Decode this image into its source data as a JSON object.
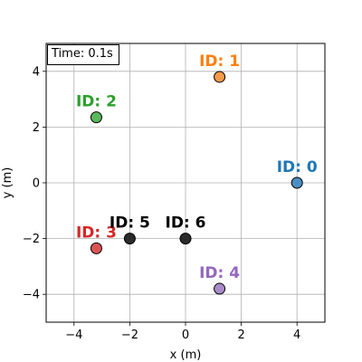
{
  "chart_data": {
    "type": "scatter",
    "title": "",
    "xlabel": "x (m)",
    "ylabel": "y (m)",
    "xlim": [
      -5,
      5
    ],
    "ylim": [
      -5,
      5
    ],
    "grid": true,
    "x_ticks": [
      -4,
      -2,
      0,
      2,
      4
    ],
    "y_ticks": [
      -4,
      -2,
      0,
      2,
      4
    ],
    "annotation": "Time: 0.1s",
    "points": [
      {
        "label": "ID: 0",
        "x": 4.0,
        "y": 0.0,
        "color": "#1f77b4",
        "fill": "#4a8fc4",
        "label_color": "#1f77b4"
      },
      {
        "label": "ID: 1",
        "x": 1.22,
        "y": 3.8,
        "color": "#ff7f0e",
        "fill": "#f59a4a",
        "label_color": "#ff7f0e"
      },
      {
        "label": "ID: 2",
        "x": -3.2,
        "y": 2.35,
        "color": "#2ca02c",
        "fill": "#5bb85b",
        "label_color": "#2ca02c"
      },
      {
        "label": "ID: 3",
        "x": -3.2,
        "y": -2.35,
        "color": "#d62728",
        "fill": "#dc5354",
        "label_color": "#d62728"
      },
      {
        "label": "ID: 4",
        "x": 1.22,
        "y": -3.8,
        "color": "#9467bd",
        "fill": "#a98aca",
        "label_color": "#9467bd"
      },
      {
        "label": "ID: 5",
        "x": -2.0,
        "y": -2.0,
        "color": "#000000",
        "fill": "#2b2b2b",
        "label_color": "#000000"
      },
      {
        "label": "ID: 6",
        "x": 0.0,
        "y": -2.0,
        "color": "#000000",
        "fill": "#2b2b2b",
        "label_color": "#000000"
      }
    ]
  }
}
